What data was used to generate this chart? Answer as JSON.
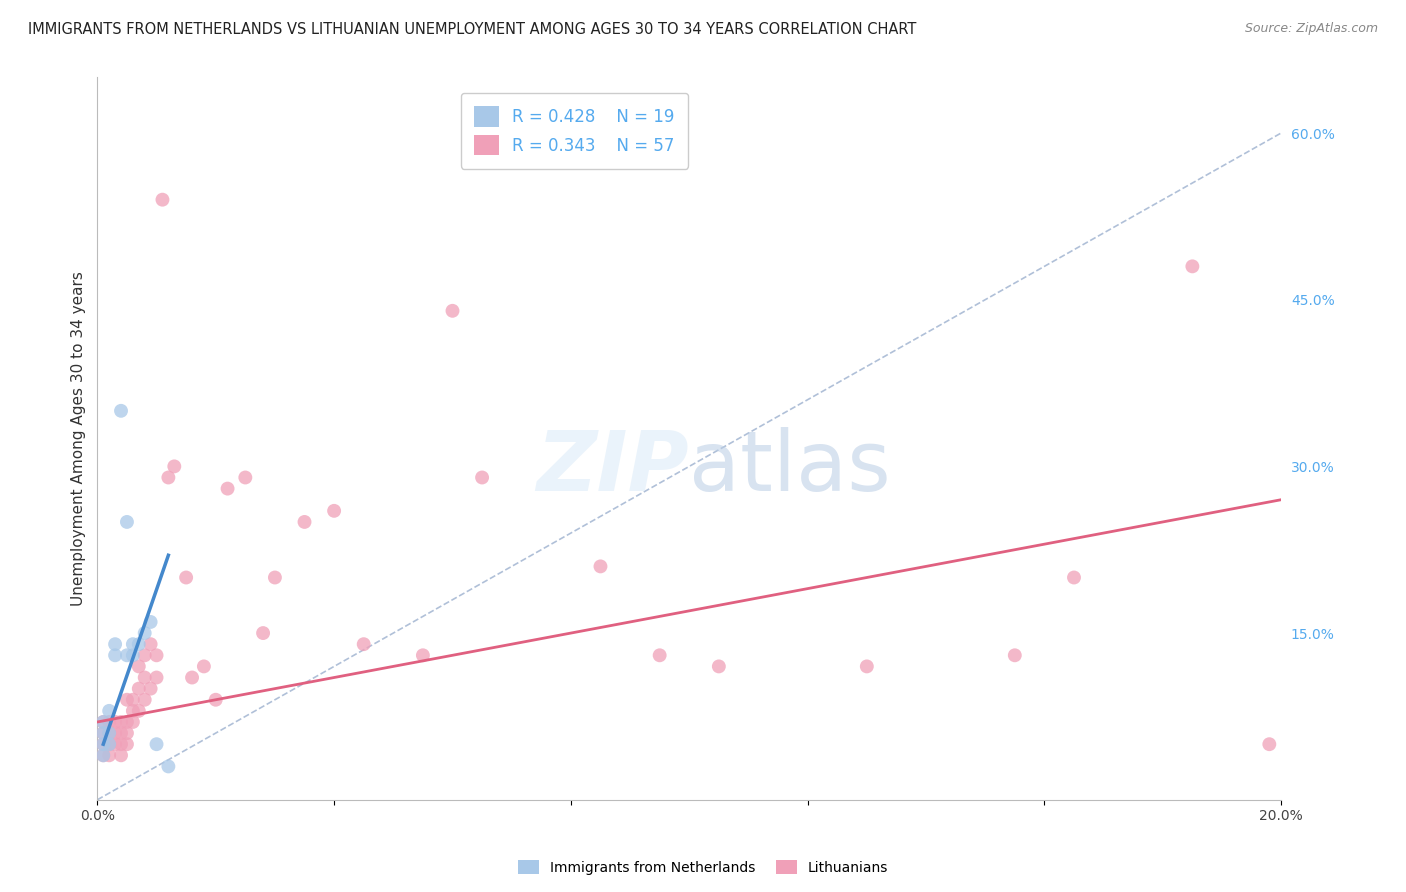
{
  "title": "IMMIGRANTS FROM NETHERLANDS VS LITHUANIAN UNEMPLOYMENT AMONG AGES 30 TO 34 YEARS CORRELATION CHART",
  "source": "Source: ZipAtlas.com",
  "ylabel": "Unemployment Among Ages 30 to 34 years",
  "xlim": [
    0.0,
    0.2
  ],
  "ylim": [
    0.0,
    0.65
  ],
  "xticks": [
    0.0,
    0.04,
    0.08,
    0.12,
    0.16,
    0.2
  ],
  "xtick_labels": [
    "0.0%",
    "",
    "",
    "",
    "",
    "20.0%"
  ],
  "ytick_labels_right": [
    "60.0%",
    "45.0%",
    "30.0%",
    "15.0%"
  ],
  "ytick_vals_right": [
    0.6,
    0.45,
    0.3,
    0.15
  ],
  "background_color": "#ffffff",
  "grid_color": "#d8d8e8",
  "color_netherlands": "#a8c8e8",
  "color_lithuanians": "#f0a0b8",
  "color_netherlands_line": "#4488cc",
  "color_lithuanians_line": "#e06080",
  "color_ref_line": "#b0c0d8",
  "nl_scatter_x": [
    0.001,
    0.001,
    0.001,
    0.001,
    0.002,
    0.002,
    0.002,
    0.003,
    0.003,
    0.004,
    0.005,
    0.005,
    0.006,
    0.006,
    0.007,
    0.008,
    0.009,
    0.01,
    0.012
  ],
  "nl_scatter_y": [
    0.06,
    0.07,
    0.05,
    0.04,
    0.06,
    0.08,
    0.05,
    0.14,
    0.13,
    0.35,
    0.25,
    0.13,
    0.13,
    0.14,
    0.14,
    0.15,
    0.16,
    0.05,
    0.03
  ],
  "lt_scatter_x": [
    0.001,
    0.001,
    0.001,
    0.001,
    0.002,
    0.002,
    0.002,
    0.002,
    0.003,
    0.003,
    0.003,
    0.004,
    0.004,
    0.004,
    0.004,
    0.005,
    0.005,
    0.005,
    0.005,
    0.006,
    0.006,
    0.006,
    0.007,
    0.007,
    0.007,
    0.008,
    0.008,
    0.008,
    0.009,
    0.009,
    0.01,
    0.01,
    0.011,
    0.012,
    0.013,
    0.015,
    0.016,
    0.018,
    0.02,
    0.022,
    0.025,
    0.028,
    0.03,
    0.035,
    0.04,
    0.045,
    0.055,
    0.06,
    0.065,
    0.085,
    0.095,
    0.105,
    0.13,
    0.155,
    0.165,
    0.185,
    0.198
  ],
  "lt_scatter_y": [
    0.07,
    0.06,
    0.05,
    0.04,
    0.06,
    0.07,
    0.05,
    0.04,
    0.07,
    0.06,
    0.05,
    0.07,
    0.06,
    0.05,
    0.04,
    0.09,
    0.07,
    0.06,
    0.05,
    0.09,
    0.08,
    0.07,
    0.12,
    0.1,
    0.08,
    0.13,
    0.11,
    0.09,
    0.14,
    0.1,
    0.13,
    0.11,
    0.54,
    0.29,
    0.3,
    0.2,
    0.11,
    0.12,
    0.09,
    0.28,
    0.29,
    0.15,
    0.2,
    0.25,
    0.26,
    0.14,
    0.13,
    0.44,
    0.29,
    0.21,
    0.13,
    0.12,
    0.12,
    0.13,
    0.2,
    0.48,
    0.05
  ],
  "nl_line_x": [
    0.001,
    0.012
  ],
  "nl_line_y": [
    0.05,
    0.22
  ],
  "lt_line_x": [
    0.0,
    0.2
  ],
  "lt_line_y": [
    0.07,
    0.27
  ],
  "ref_line_x": [
    0.0,
    0.2
  ],
  "ref_line_y": [
    0.0,
    0.6
  ],
  "title_fontsize": 10.5,
  "axis_label_fontsize": 11,
  "tick_fontsize": 10,
  "legend_fontsize": 12,
  "marker_size": 100
}
